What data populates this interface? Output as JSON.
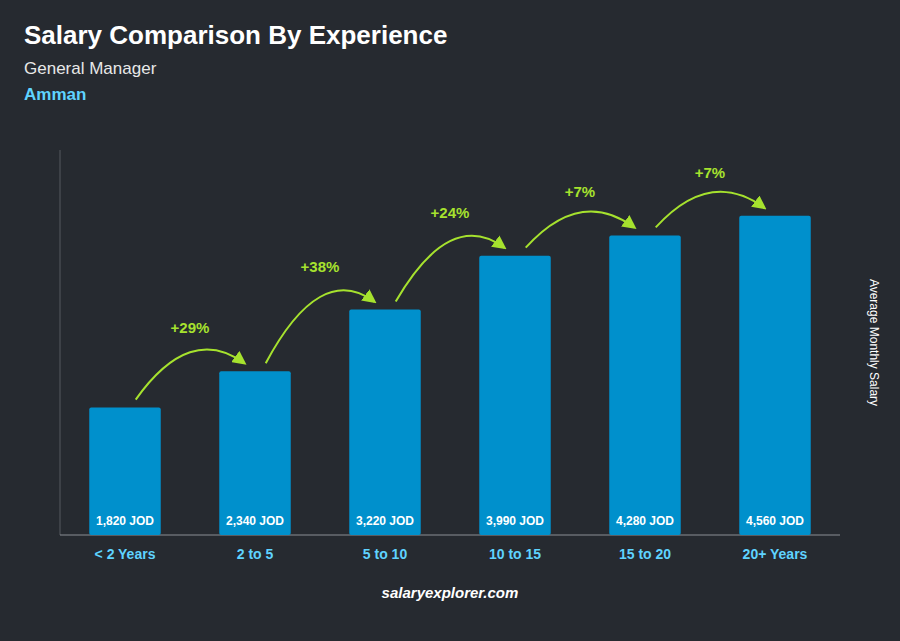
{
  "chart_data": {
    "type": "bar",
    "title": "Salary Comparison By Experience",
    "subtitle": "General Manager",
    "city": "Amman",
    "y_label": "Average Monthly Salary",
    "watermark": "salaryexplorer.com",
    "categories": [
      "< 2 Years",
      "2 to 5",
      "5 to 10",
      "10 to 15",
      "15 to 20",
      "20+ Years"
    ],
    "values": [
      1820,
      2340,
      3220,
      3990,
      4280,
      4560
    ],
    "value_labels": [
      "1,820 JOD",
      "2,340 JOD",
      "3,220 JOD",
      "3,990 JOD",
      "4,280 JOD",
      "4,560 JOD"
    ],
    "data_labels": true,
    "annotations": [
      "+29%",
      "+38%",
      "+24%",
      "+7%",
      "+7%"
    ],
    "color": "#0090cc",
    "ylim": [
      0,
      5500
    ],
    "grid": false,
    "tick_labels": "x"
  }
}
